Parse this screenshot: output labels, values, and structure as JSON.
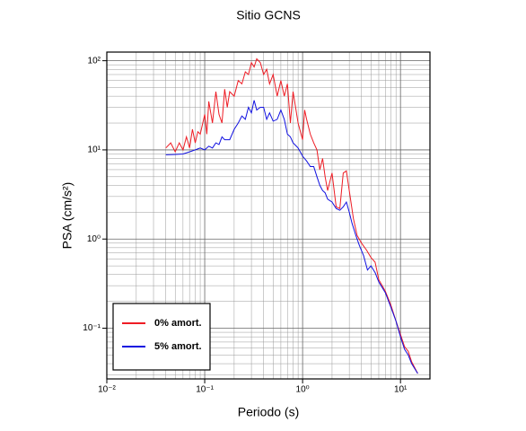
{
  "chart_data": {
    "type": "line",
    "title": "Sitio GCNS",
    "x_label": "Periodo (s)",
    "y_label": "PSA (cm/s²)",
    "xscale": "log",
    "yscale": "log",
    "grid": true,
    "legend": "lower left",
    "xlim": [
      0.01,
      20
    ],
    "ylim": [
      0.027,
      125
    ],
    "xticks": [
      {
        "value": 0.01,
        "label": "10⁻²"
      },
      {
        "value": 0.1,
        "label": "10⁻¹"
      },
      {
        "value": 1,
        "label": "10⁰"
      },
      {
        "value": 10,
        "label": "10¹"
      }
    ],
    "yticks": [
      {
        "value": 0.1,
        "label": "10⁻¹"
      },
      {
        "value": 1,
        "label": "10⁰"
      },
      {
        "value": 10,
        "label": "10¹"
      },
      {
        "value": 100,
        "label": "10²"
      }
    ],
    "series": [
      {
        "name": "0% amort.",
        "color": "#ee1c24",
        "x": [
          0.04,
          0.045,
          0.05,
          0.055,
          0.06,
          0.065,
          0.07,
          0.075,
          0.08,
          0.085,
          0.09,
          0.1,
          0.105,
          0.11,
          0.12,
          0.13,
          0.14,
          0.15,
          0.16,
          0.17,
          0.18,
          0.2,
          0.22,
          0.24,
          0.26,
          0.28,
          0.3,
          0.32,
          0.34,
          0.37,
          0.4,
          0.43,
          0.46,
          0.5,
          0.55,
          0.6,
          0.65,
          0.7,
          0.75,
          0.8,
          0.9,
          1.0,
          1.05,
          1.1,
          1.2,
          1.3,
          1.4,
          1.5,
          1.6,
          1.7,
          1.8,
          2.0,
          2.2,
          2.4,
          2.6,
          2.8,
          3.0,
          3.3,
          3.6,
          4.0,
          4.5,
          5.0,
          5.5,
          6.0,
          7,
          8,
          9,
          10,
          11,
          12,
          13,
          15
        ],
        "values": [
          10.5,
          12,
          9.5,
          12,
          10,
          14,
          10.5,
          17,
          12,
          16,
          15,
          25,
          15,
          35,
          20,
          45,
          25,
          20,
          48,
          30,
          45,
          40,
          60,
          55,
          75,
          70,
          95,
          85,
          105,
          95,
          70,
          80,
          55,
          70,
          40,
          60,
          40,
          55,
          20,
          45,
          20,
          13,
          28,
          22,
          15,
          12,
          10,
          6,
          8,
          5,
          3.5,
          5.5,
          2.3,
          2.2,
          5.5,
          5.8,
          3.5,
          1.7,
          1.1,
          0.9,
          0.75,
          0.62,
          0.55,
          0.35,
          0.26,
          0.18,
          0.12,
          0.085,
          0.062,
          0.055,
          0.042,
          0.031
        ]
      },
      {
        "name": "5% amort.",
        "color": "#1010e0",
        "x": [
          0.04,
          0.05,
          0.06,
          0.07,
          0.08,
          0.09,
          0.1,
          0.11,
          0.12,
          0.13,
          0.14,
          0.15,
          0.16,
          0.18,
          0.2,
          0.22,
          0.24,
          0.26,
          0.28,
          0.3,
          0.32,
          0.34,
          0.37,
          0.4,
          0.43,
          0.46,
          0.5,
          0.55,
          0.6,
          0.65,
          0.7,
          0.75,
          0.8,
          0.9,
          1.0,
          1.1,
          1.2,
          1.3,
          1.4,
          1.5,
          1.6,
          1.7,
          1.8,
          2.0,
          2.2,
          2.4,
          2.6,
          2.8,
          3.0,
          3.2,
          3.5,
          3.8,
          4.2,
          4.6,
          5.0,
          5.5,
          6.0,
          7,
          8,
          9,
          10,
          11,
          12,
          13,
          15
        ],
        "values": [
          8.8,
          8.9,
          9.0,
          9.5,
          10,
          10.5,
          10,
          11,
          10.5,
          12,
          11.5,
          14,
          13,
          13,
          17,
          20,
          24,
          22,
          30,
          26,
          36,
          28,
          30,
          30,
          22,
          26,
          21,
          22,
          28,
          22,
          15,
          14,
          12,
          10.5,
          8.5,
          7.5,
          6.5,
          6.5,
          5,
          4,
          3.5,
          3.3,
          2.8,
          2.6,
          2.2,
          2.1,
          2.3,
          2.6,
          2.0,
          1.5,
          1.1,
          0.85,
          0.65,
          0.45,
          0.5,
          0.42,
          0.33,
          0.25,
          0.17,
          0.12,
          0.08,
          0.058,
          0.05,
          0.04,
          0.031
        ]
      }
    ]
  }
}
